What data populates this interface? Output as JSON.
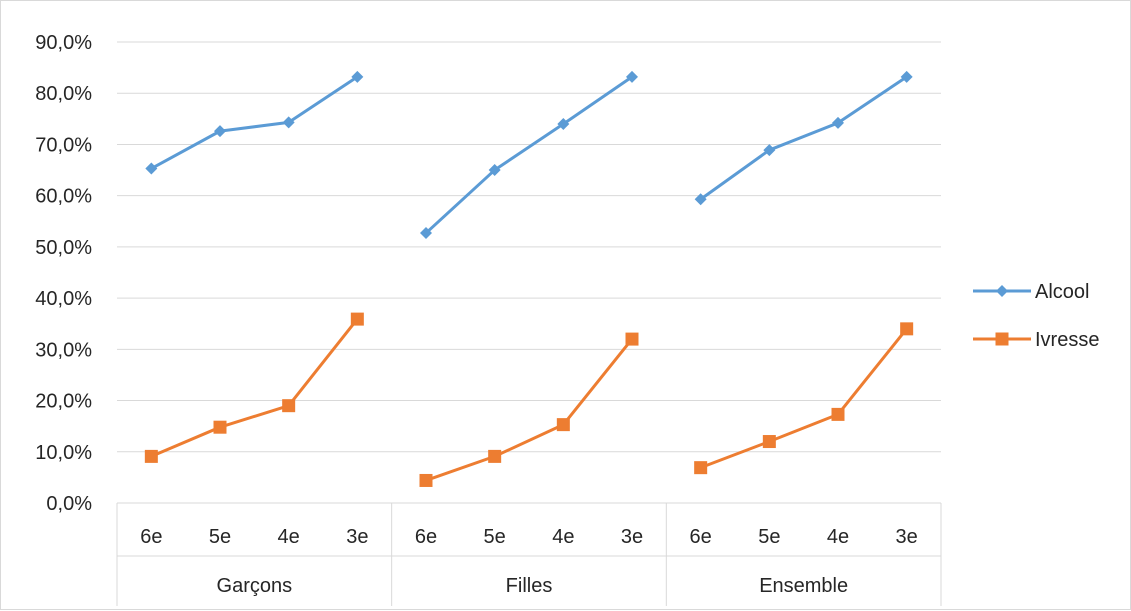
{
  "chart_data": {
    "type": "line",
    "title": "",
    "xlabel": "",
    "ylabel": "",
    "ylim": [
      0,
      90
    ],
    "y_tick_labels": [
      "0,0%",
      "10,0%",
      "20,0%",
      "30,0%",
      "40,0%",
      "50,0%",
      "60,0%",
      "70,0%",
      "80,0%",
      "90,0%"
    ],
    "grid": true,
    "legend_position": "right",
    "groups": [
      {
        "label": "Garçons",
        "categories": [
          "6e",
          "5e",
          "4e",
          "3e"
        ]
      },
      {
        "label": "Filles",
        "categories": [
          "6e",
          "5e",
          "4e",
          "3e"
        ]
      },
      {
        "label": "Ensemble",
        "categories": [
          "6e",
          "5e",
          "4e",
          "3e"
        ]
      }
    ],
    "series": [
      {
        "name": "Alcool",
        "marker": "diamond",
        "color": "#5b9bd5",
        "values": [
          [
            65.3,
            72.6,
            74.3,
            83.2
          ],
          [
            52.7,
            65.0,
            74.0,
            83.2
          ],
          [
            59.3,
            68.9,
            74.2,
            83.2
          ]
        ]
      },
      {
        "name": "Ivresse",
        "marker": "square",
        "color": "#ed7d31",
        "values": [
          [
            9.1,
            14.8,
            19.0,
            35.9
          ],
          [
            4.4,
            9.1,
            15.3,
            32.0
          ],
          [
            6.9,
            12.0,
            17.3,
            34.0
          ]
        ]
      }
    ]
  }
}
